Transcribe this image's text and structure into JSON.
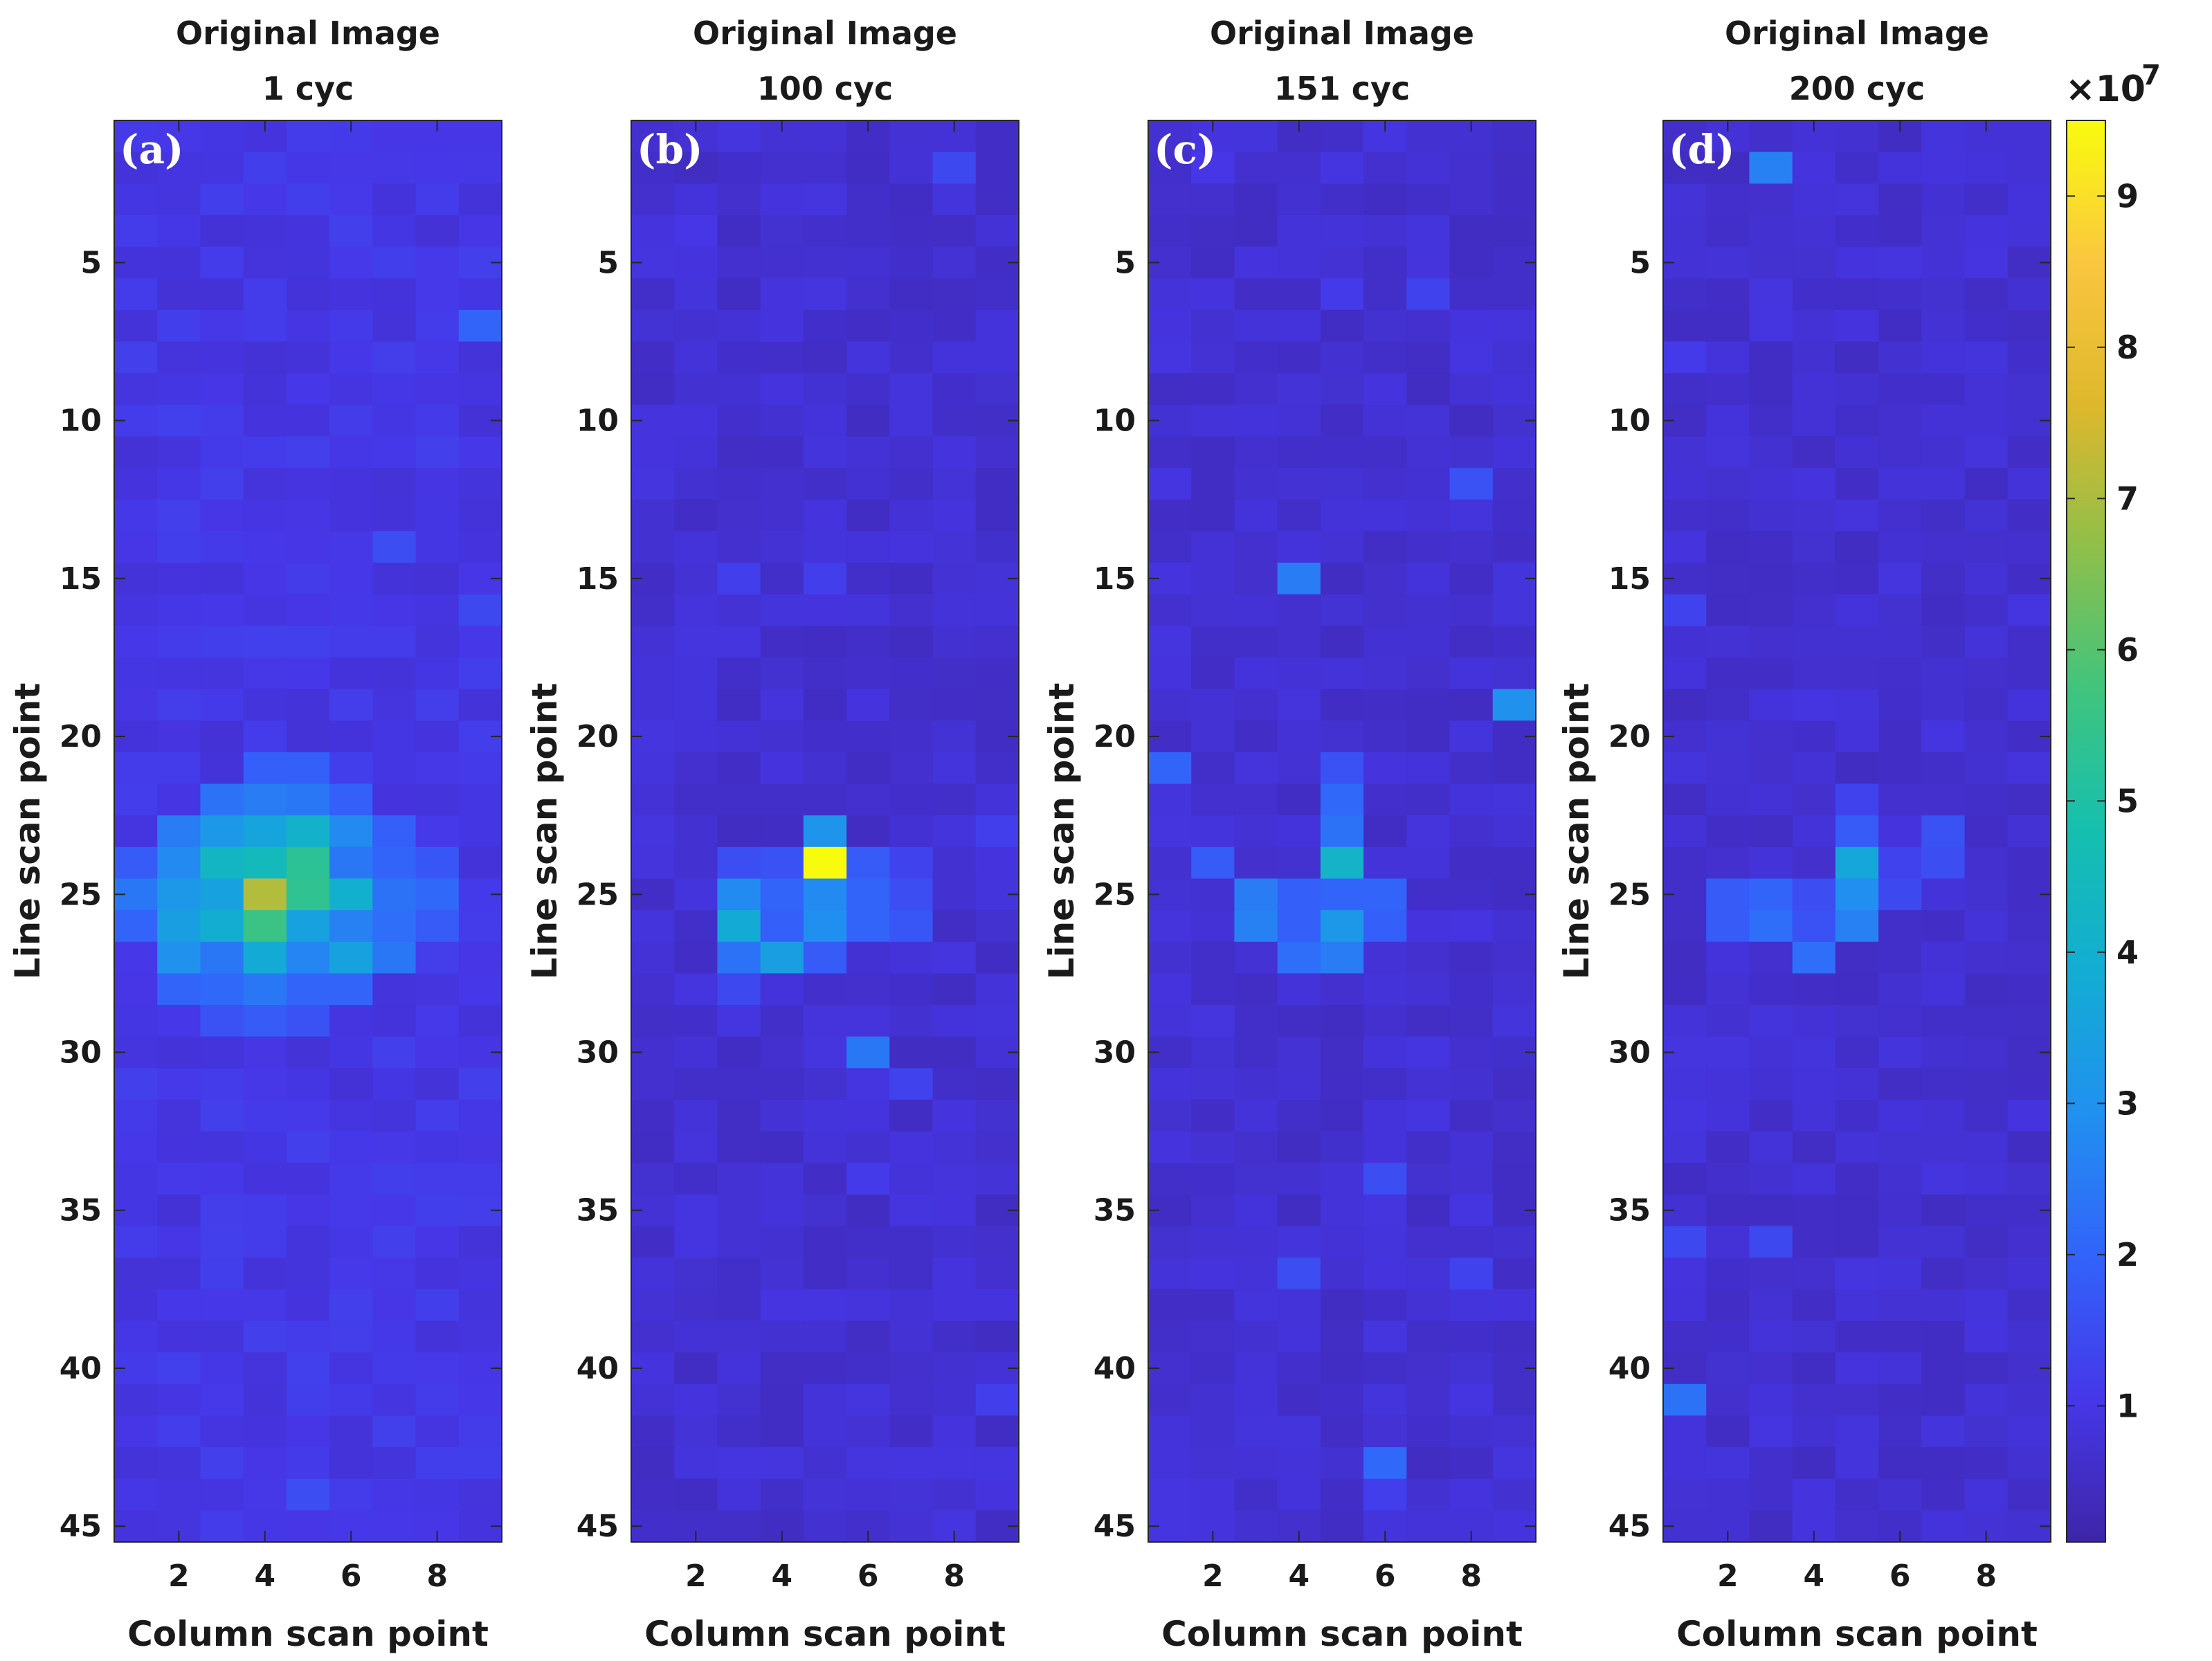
{
  "chart_data": {
    "type": "heatmap",
    "colormap": "parula",
    "x_label": "Column scan point",
    "y_label": "Line scan point",
    "x_range": [
      1,
      9
    ],
    "y_range": [
      1,
      45
    ],
    "x_ticks": [
      2,
      4,
      6,
      8
    ],
    "y_ticks": [
      5,
      10,
      15,
      20,
      25,
      30,
      35,
      40,
      45
    ],
    "colorbar": {
      "multiplier": "×10",
      "exponent": "7",
      "ticks": [
        1,
        2,
        3,
        4,
        5,
        6,
        7,
        8,
        9
      ],
      "range": [
        0.1,
        9.5
      ]
    },
    "panels": [
      {
        "label": "(a)",
        "title": "Original Image",
        "subtitle": "1 cyc",
        "background": 1.0,
        "hotspots": [
          {
            "col": 9,
            "line": 7,
            "value": 2.0
          },
          {
            "col": 7,
            "line": 14,
            "value": 1.5
          },
          {
            "col": 9,
            "line": 16,
            "value": 1.4
          },
          {
            "col": 4,
            "line": 21,
            "value": 1.9
          },
          {
            "col": 5,
            "line": 21,
            "value": 1.9
          },
          {
            "col": 3,
            "line": 22,
            "value": 2.3
          },
          {
            "col": 4,
            "line": 22,
            "value": 2.5
          },
          {
            "col": 5,
            "line": 22,
            "value": 2.4
          },
          {
            "col": 6,
            "line": 22,
            "value": 1.9
          },
          {
            "col": 2,
            "line": 23,
            "value": 2.5
          },
          {
            "col": 3,
            "line": 23,
            "value": 3.2
          },
          {
            "col": 4,
            "line": 23,
            "value": 3.6
          },
          {
            "col": 5,
            "line": 23,
            "value": 4.1
          },
          {
            "col": 6,
            "line": 23,
            "value": 2.8
          },
          {
            "col": 7,
            "line": 23,
            "value": 1.9
          },
          {
            "col": 1,
            "line": 24,
            "value": 1.8
          },
          {
            "col": 2,
            "line": 24,
            "value": 2.8
          },
          {
            "col": 3,
            "line": 24,
            "value": 4.3
          },
          {
            "col": 4,
            "line": 24,
            "value": 4.5
          },
          {
            "col": 5,
            "line": 24,
            "value": 5.3
          },
          {
            "col": 6,
            "line": 24,
            "value": 2.4
          },
          {
            "col": 7,
            "line": 24,
            "value": 2.0
          },
          {
            "col": 8,
            "line": 24,
            "value": 1.7
          },
          {
            "col": 1,
            "line": 25,
            "value": 2.4
          },
          {
            "col": 2,
            "line": 25,
            "value": 3.2
          },
          {
            "col": 3,
            "line": 25,
            "value": 3.5
          },
          {
            "col": 4,
            "line": 25,
            "value": 7.1
          },
          {
            "col": 5,
            "line": 25,
            "value": 5.4
          },
          {
            "col": 6,
            "line": 25,
            "value": 4.0
          },
          {
            "col": 7,
            "line": 25,
            "value": 2.3
          },
          {
            "col": 8,
            "line": 25,
            "value": 2.1
          },
          {
            "col": 1,
            "line": 26,
            "value": 2.0
          },
          {
            "col": 2,
            "line": 26,
            "value": 3.4
          },
          {
            "col": 3,
            "line": 26,
            "value": 3.9
          },
          {
            "col": 4,
            "line": 26,
            "value": 5.6
          },
          {
            "col": 5,
            "line": 26,
            "value": 3.5
          },
          {
            "col": 6,
            "line": 26,
            "value": 2.6
          },
          {
            "col": 7,
            "line": 26,
            "value": 2.2
          },
          {
            "col": 8,
            "line": 26,
            "value": 1.8
          },
          {
            "col": 2,
            "line": 27,
            "value": 3.0
          },
          {
            "col": 3,
            "line": 27,
            "value": 2.4
          },
          {
            "col": 4,
            "line": 27,
            "value": 3.8
          },
          {
            "col": 5,
            "line": 27,
            "value": 2.7
          },
          {
            "col": 6,
            "line": 27,
            "value": 3.5
          },
          {
            "col": 7,
            "line": 27,
            "value": 2.4
          },
          {
            "col": 2,
            "line": 28,
            "value": 2.0
          },
          {
            "col": 3,
            "line": 28,
            "value": 2.1
          },
          {
            "col": 4,
            "line": 28,
            "value": 2.4
          },
          {
            "col": 5,
            "line": 28,
            "value": 2.0
          },
          {
            "col": 6,
            "line": 28,
            "value": 2.0
          },
          {
            "col": 3,
            "line": 29,
            "value": 1.6
          },
          {
            "col": 4,
            "line": 29,
            "value": 1.8
          },
          {
            "col": 5,
            "line": 29,
            "value": 1.6
          },
          {
            "col": 5,
            "line": 44,
            "value": 1.5
          }
        ]
      },
      {
        "label": "(b)",
        "title": "Original Image",
        "subtitle": "100 cyc",
        "background": 0.7,
        "hotspots": [
          {
            "col": 8,
            "line": 2,
            "value": 1.4
          },
          {
            "col": 2,
            "line": 4,
            "value": 1.0
          },
          {
            "col": 3,
            "line": 15,
            "value": 1.2
          },
          {
            "col": 5,
            "line": 15,
            "value": 1.2
          },
          {
            "col": 5,
            "line": 23,
            "value": 3.1
          },
          {
            "col": 5,
            "line": 24,
            "value": 9.5
          },
          {
            "col": 9,
            "line": 23,
            "value": 1.2
          },
          {
            "col": 3,
            "line": 24,
            "value": 1.5
          },
          {
            "col": 4,
            "line": 24,
            "value": 1.6
          },
          {
            "col": 6,
            "line": 24,
            "value": 1.8
          },
          {
            "col": 7,
            "line": 24,
            "value": 1.3
          },
          {
            "col": 3,
            "line": 25,
            "value": 2.8
          },
          {
            "col": 4,
            "line": 25,
            "value": 2.0
          },
          {
            "col": 5,
            "line": 25,
            "value": 2.8
          },
          {
            "col": 6,
            "line": 25,
            "value": 2.0
          },
          {
            "col": 7,
            "line": 25,
            "value": 1.5
          },
          {
            "col": 3,
            "line": 26,
            "value": 3.8
          },
          {
            "col": 4,
            "line": 26,
            "value": 1.9
          },
          {
            "col": 5,
            "line": 26,
            "value": 2.9
          },
          {
            "col": 6,
            "line": 26,
            "value": 2.0
          },
          {
            "col": 7,
            "line": 26,
            "value": 1.7
          },
          {
            "col": 3,
            "line": 27,
            "value": 2.3
          },
          {
            "col": 4,
            "line": 27,
            "value": 3.4
          },
          {
            "col": 5,
            "line": 27,
            "value": 1.8
          },
          {
            "col": 3,
            "line": 28,
            "value": 1.4
          },
          {
            "col": 6,
            "line": 30,
            "value": 2.4
          },
          {
            "col": 7,
            "line": 31,
            "value": 1.3
          },
          {
            "col": 6,
            "line": 34,
            "value": 1.1
          },
          {
            "col": 9,
            "line": 41,
            "value": 1.2
          }
        ]
      },
      {
        "label": "(c)",
        "title": "Original Image",
        "subtitle": "151 cyc",
        "background": 0.7,
        "hotspots": [
          {
            "col": 2,
            "line": 2,
            "value": 1.0
          },
          {
            "col": 5,
            "line": 6,
            "value": 1.1
          },
          {
            "col": 7,
            "line": 6,
            "value": 1.3
          },
          {
            "col": 8,
            "line": 12,
            "value": 1.6
          },
          {
            "col": 4,
            "line": 15,
            "value": 2.5
          },
          {
            "col": 9,
            "line": 19,
            "value": 3.0
          },
          {
            "col": 1,
            "line": 21,
            "value": 2.0
          },
          {
            "col": 5,
            "line": 21,
            "value": 1.6
          },
          {
            "col": 5,
            "line": 22,
            "value": 2.1
          },
          {
            "col": 5,
            "line": 23,
            "value": 2.3
          },
          {
            "col": 2,
            "line": 24,
            "value": 1.8
          },
          {
            "col": 5,
            "line": 24,
            "value": 4.2
          },
          {
            "col": 3,
            "line": 25,
            "value": 2.5
          },
          {
            "col": 4,
            "line": 25,
            "value": 1.9
          },
          {
            "col": 5,
            "line": 25,
            "value": 2.0
          },
          {
            "col": 6,
            "line": 25,
            "value": 2.0
          },
          {
            "col": 3,
            "line": 26,
            "value": 2.6
          },
          {
            "col": 4,
            "line": 26,
            "value": 1.9
          },
          {
            "col": 5,
            "line": 26,
            "value": 3.2
          },
          {
            "col": 6,
            "line": 26,
            "value": 1.9
          },
          {
            "col": 4,
            "line": 27,
            "value": 2.2
          },
          {
            "col": 5,
            "line": 27,
            "value": 2.5
          },
          {
            "col": 6,
            "line": 34,
            "value": 1.5
          },
          {
            "col": 4,
            "line": 37,
            "value": 1.5
          },
          {
            "col": 8,
            "line": 37,
            "value": 1.3
          },
          {
            "col": 6,
            "line": 43,
            "value": 2.1
          },
          {
            "col": 6,
            "line": 44,
            "value": 1.2
          }
        ]
      },
      {
        "label": "(d)",
        "title": "Original Image",
        "subtitle": "200 cyc",
        "background": 0.7,
        "hotspots": [
          {
            "col": 3,
            "line": 2,
            "value": 2.6
          },
          {
            "col": 1,
            "line": 8,
            "value": 1.1
          },
          {
            "col": 1,
            "line": 16,
            "value": 1.3
          },
          {
            "col": 5,
            "line": 22,
            "value": 1.3
          },
          {
            "col": 5,
            "line": 23,
            "value": 1.8
          },
          {
            "col": 7,
            "line": 23,
            "value": 1.6
          },
          {
            "col": 5,
            "line": 24,
            "value": 3.7
          },
          {
            "col": 6,
            "line": 24,
            "value": 1.3
          },
          {
            "col": 7,
            "line": 24,
            "value": 1.5
          },
          {
            "col": 2,
            "line": 25,
            "value": 1.8
          },
          {
            "col": 3,
            "line": 25,
            "value": 2.0
          },
          {
            "col": 4,
            "line": 25,
            "value": 1.5
          },
          {
            "col": 5,
            "line": 25,
            "value": 2.9
          },
          {
            "col": 6,
            "line": 25,
            "value": 1.4
          },
          {
            "col": 2,
            "line": 26,
            "value": 1.8
          },
          {
            "col": 3,
            "line": 26,
            "value": 2.2
          },
          {
            "col": 4,
            "line": 26,
            "value": 1.6
          },
          {
            "col": 5,
            "line": 26,
            "value": 2.6
          },
          {
            "col": 4,
            "line": 27,
            "value": 2.2
          },
          {
            "col": 1,
            "line": 36,
            "value": 1.4
          },
          {
            "col": 3,
            "line": 36,
            "value": 1.4
          },
          {
            "col": 1,
            "line": 41,
            "value": 2.3
          }
        ]
      }
    ]
  }
}
